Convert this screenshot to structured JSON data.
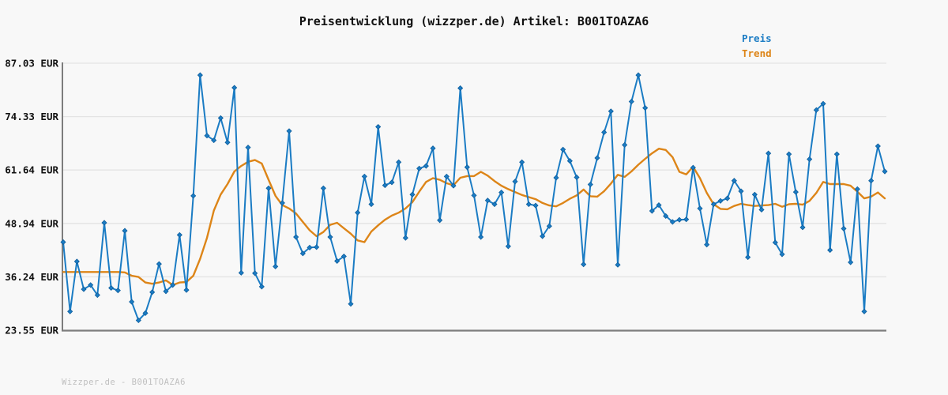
{
  "header": {
    "title": "Preisentwicklung (wizzper.de) Artikel: B001TOAZA6"
  },
  "legend": {
    "items": [
      {
        "label": "Preis",
        "color": "#1b7cc4"
      },
      {
        "label": "Trend",
        "color": "#dd8518"
      }
    ]
  },
  "watermark": "Wizzper.de - B001TOAZA6",
  "colors": {
    "background": "#f8f8f8",
    "grid": "#e4e4e4",
    "axis": "#7d7d7d",
    "title_text": "#111111",
    "tick_text": "#111111",
    "watermark_text": "#bfbfbf",
    "preis": "#1b7cc4",
    "preis_marker_edge": "#0f5e9c",
    "trend": "#dd8518"
  },
  "chart_data": {
    "type": "line",
    "title": "Preisentwicklung (wizzper.de) Artikel: B001TOAZA6",
    "xlabel": "",
    "ylabel": "EUR",
    "ylim": [
      23.55,
      87.03
    ],
    "grid": "horizontal-only",
    "legend_position": "top-right",
    "x_axis_labels": "none shown (evenly spaced price observations over time)",
    "y_ticks": [
      {
        "label": "87.03 EUR",
        "value": 87.03
      },
      {
        "label": "74.33 EUR",
        "value": 74.33
      },
      {
        "label": "61.64 EUR",
        "value": 61.64
      },
      {
        "label": "48.94 EUR",
        "value": 48.94
      },
      {
        "label": "36.24 EUR",
        "value": 36.24
      },
      {
        "label": "23.55 EUR",
        "value": 23.55
      }
    ],
    "series": [
      {
        "name": "Preis",
        "color": "#1b7cc4",
        "marker": "diamond",
        "values": [
          44.5,
          28.0,
          39.9,
          33.3,
          34.3,
          31.9,
          49.1,
          33.6,
          33.0,
          47.2,
          30.3,
          25.9,
          27.6,
          32.6,
          39.3,
          32.8,
          34.3,
          46.2,
          33.1,
          55.5,
          84.2,
          69.8,
          68.7,
          74.0,
          68.2,
          81.2,
          37.2,
          67.0,
          37.1,
          33.9,
          57.3,
          38.7,
          53.8,
          70.9,
          45.7,
          41.8,
          43.2,
          43.3,
          57.3,
          45.7,
          40.0,
          41.1,
          29.8,
          51.5,
          60.1,
          53.5,
          71.9,
          58.0,
          58.7,
          63.5,
          45.5,
          55.8,
          62.0,
          62.6,
          66.8,
          49.7,
          60.1,
          57.9,
          81.1,
          62.3,
          55.6,
          45.7,
          54.4,
          53.5,
          56.3,
          43.5,
          58.9,
          63.5,
          53.5,
          53.2,
          45.9,
          48.3,
          59.8,
          66.5,
          63.8,
          59.9,
          39.2,
          58.2,
          64.5,
          70.6,
          75.6,
          39.1,
          67.6,
          77.9,
          84.2,
          76.4,
          51.9,
          53.3,
          50.7,
          49.3,
          49.8,
          49.9,
          62.2,
          52.5,
          43.9,
          53.5,
          54.3,
          54.9,
          59.1,
          56.6,
          40.9,
          55.8,
          52.2,
          65.6,
          44.4,
          41.6,
          65.4,
          56.4,
          48.0,
          64.2,
          75.9,
          77.4,
          42.6,
          65.4,
          47.7,
          39.7,
          57.1,
          28.0,
          59.1,
          67.3,
          61.3
        ]
      },
      {
        "name": "Trend",
        "color": "#dd8518",
        "marker": "none",
        "values": [
          37.4,
          37.4,
          37.4,
          37.4,
          37.4,
          37.4,
          37.4,
          37.4,
          37.4,
          37.3,
          36.5,
          36.2,
          34.9,
          34.6,
          34.9,
          35.4,
          34.3,
          34.9,
          35.0,
          36.5,
          40.5,
          45.5,
          52.0,
          55.8,
          58.3,
          61.3,
          62.6,
          63.6,
          64.0,
          63.2,
          59.3,
          55.5,
          53.3,
          52.5,
          51.3,
          49.3,
          47.3,
          45.9,
          46.9,
          48.6,
          49.1,
          47.8,
          46.5,
          44.9,
          44.5,
          47.0,
          48.5,
          49.8,
          50.8,
          51.5,
          52.5,
          54.0,
          56.5,
          58.8,
          59.7,
          59.3,
          58.5,
          58.0,
          59.8,
          60.2,
          60.2,
          61.2,
          60.3,
          59.0,
          57.9,
          57.1,
          56.4,
          55.7,
          55.2,
          54.7,
          53.8,
          53.2,
          53.0,
          53.8,
          54.8,
          55.6,
          57.0,
          55.4,
          55.3,
          56.6,
          58.4,
          60.5,
          60.0,
          61.3,
          62.9,
          64.3,
          65.6,
          66.7,
          66.4,
          64.7,
          61.2,
          60.6,
          62.4,
          59.7,
          56.2,
          53.5,
          52.4,
          52.3,
          53.1,
          53.6,
          53.3,
          53.1,
          53.2,
          53.3,
          53.6,
          52.9,
          53.5,
          53.6,
          53.4,
          54.3,
          56.2,
          58.8,
          58.3,
          58.3,
          58.3,
          57.9,
          56.5,
          54.9,
          55.3,
          56.3,
          54.9
        ]
      }
    ]
  }
}
